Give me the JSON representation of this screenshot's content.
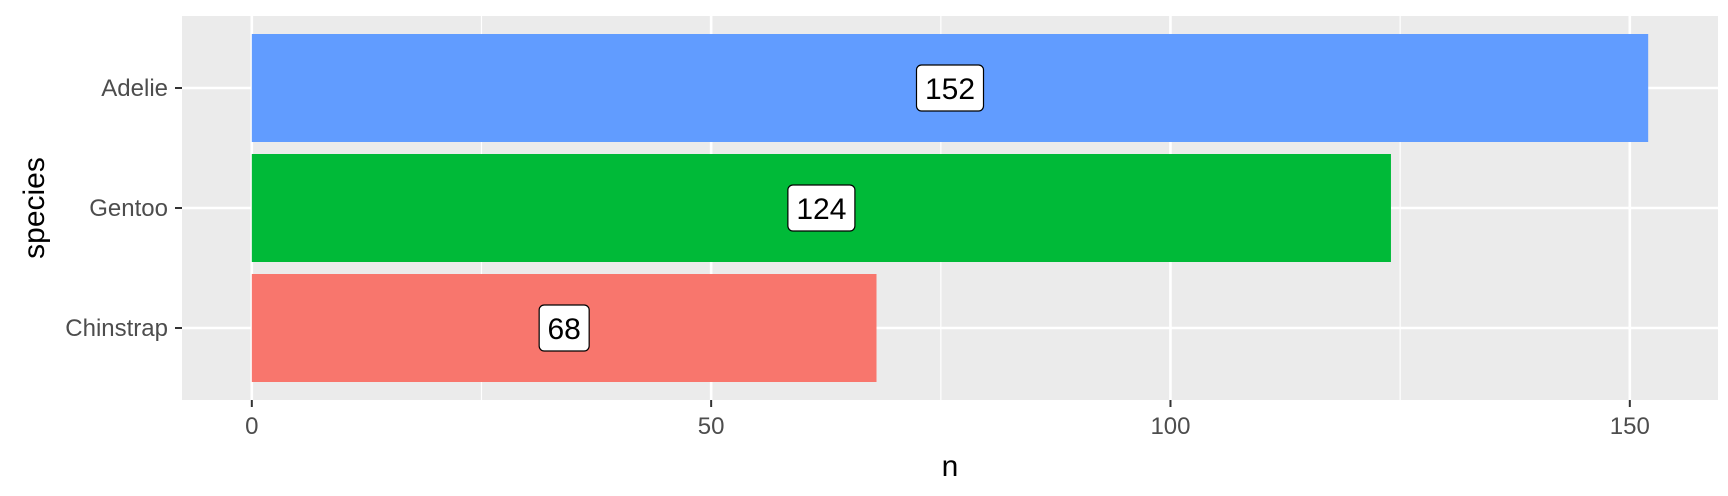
{
  "chart_data": {
    "type": "bar",
    "orientation": "horizontal",
    "categories": [
      "Adelie",
      "Gentoo",
      "Chinstrap"
    ],
    "values": [
      152,
      124,
      68
    ],
    "data_labels": [
      "152",
      "124",
      "68"
    ],
    "colors": [
      "#619CFF",
      "#00BA38",
      "#F8766D"
    ],
    "xlabel": "n",
    "ylabel": "species",
    "xlim": [
      -7.6,
      159.6
    ],
    "x_ticks": [
      0,
      50,
      100,
      150
    ],
    "x_tick_labels": [
      "0",
      "50",
      "100",
      "150"
    ],
    "grid": true,
    "legend": "none",
    "panel_background": "#EBEBEB",
    "grid_color": "#FFFFFF"
  }
}
